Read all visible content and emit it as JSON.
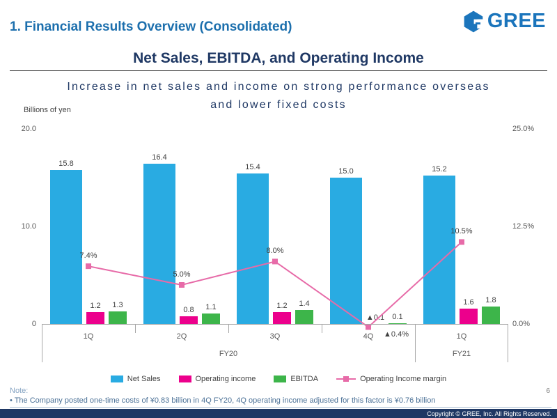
{
  "slide": {
    "header": "1. Financial Results Overview (Consolidated)",
    "logo_text": "GREE",
    "title": "Net Sales, EBITDA, and Operating Income",
    "subtitle_line1": "Increase in net sales and income on strong performance overseas",
    "subtitle_line2": "and lower fixed costs",
    "note_label": "Note:",
    "note": "• The Company posted one-time costs of ¥0.83 billion in 4Q FY20, 4Q operating income adjusted for this factor is ¥0.76 billion",
    "page_number": "6",
    "copyright": "Copyright © GREE, Inc. All Rights Reserved."
  },
  "colors": {
    "header_blue": "#1c6fad",
    "title_navy": "#1f3864",
    "footer_navy": "#1f3864",
    "net_sales": "#29abe2",
    "operating_income": "#ec008c",
    "ebitda": "#3db54a",
    "margin_line": "#e76ba8"
  },
  "chart_data": {
    "type": "bar",
    "title": "Net Sales, EBITDA, and Operating Income",
    "unit_label": "Billions of yen",
    "categories": [
      "1Q",
      "2Q",
      "3Q",
      "4Q",
      "1Q"
    ],
    "fiscal_years": [
      {
        "label": "FY20",
        "span": 4
      },
      {
        "label": "FY21",
        "span": 1
      }
    ],
    "left_axis": {
      "ticks": [
        "20.0",
        "10.0",
        "0"
      ],
      "min": 0,
      "max": 20
    },
    "right_axis": {
      "ticks": [
        "25.0%",
        "12.5%",
        "0.0%"
      ],
      "min": 0,
      "max": 25
    },
    "legend_position": "bottom",
    "grid": false,
    "series": [
      {
        "name": "Net Sales",
        "type": "bar",
        "color": "#29abe2",
        "values": [
          15.8,
          16.4,
          15.4,
          15.0,
          15.2
        ],
        "labels": [
          "15.8",
          "16.4",
          "15.4",
          "15.0",
          "15.2"
        ]
      },
      {
        "name": "Operating income",
        "type": "bar",
        "color": "#ec008c",
        "values": [
          1.2,
          0.8,
          1.2,
          -0.1,
          1.6
        ],
        "labels": [
          "1.2",
          "0.8",
          "1.2",
          "▲0.1",
          "1.6"
        ]
      },
      {
        "name": "EBITDA",
        "type": "bar",
        "color": "#3db54a",
        "values": [
          1.3,
          1.1,
          1.4,
          0.1,
          1.8
        ],
        "labels": [
          "1.3",
          "1.1",
          "1.4",
          "0.1",
          "1.8"
        ]
      },
      {
        "name": "Operating Income margin",
        "type": "line",
        "color": "#e76ba8",
        "values": [
          7.4,
          5.0,
          8.0,
          -0.4,
          10.5
        ],
        "labels": [
          "7.4%",
          "5.0%",
          "8.0%",
          "▲0.4%",
          "10.5%"
        ]
      }
    ]
  }
}
